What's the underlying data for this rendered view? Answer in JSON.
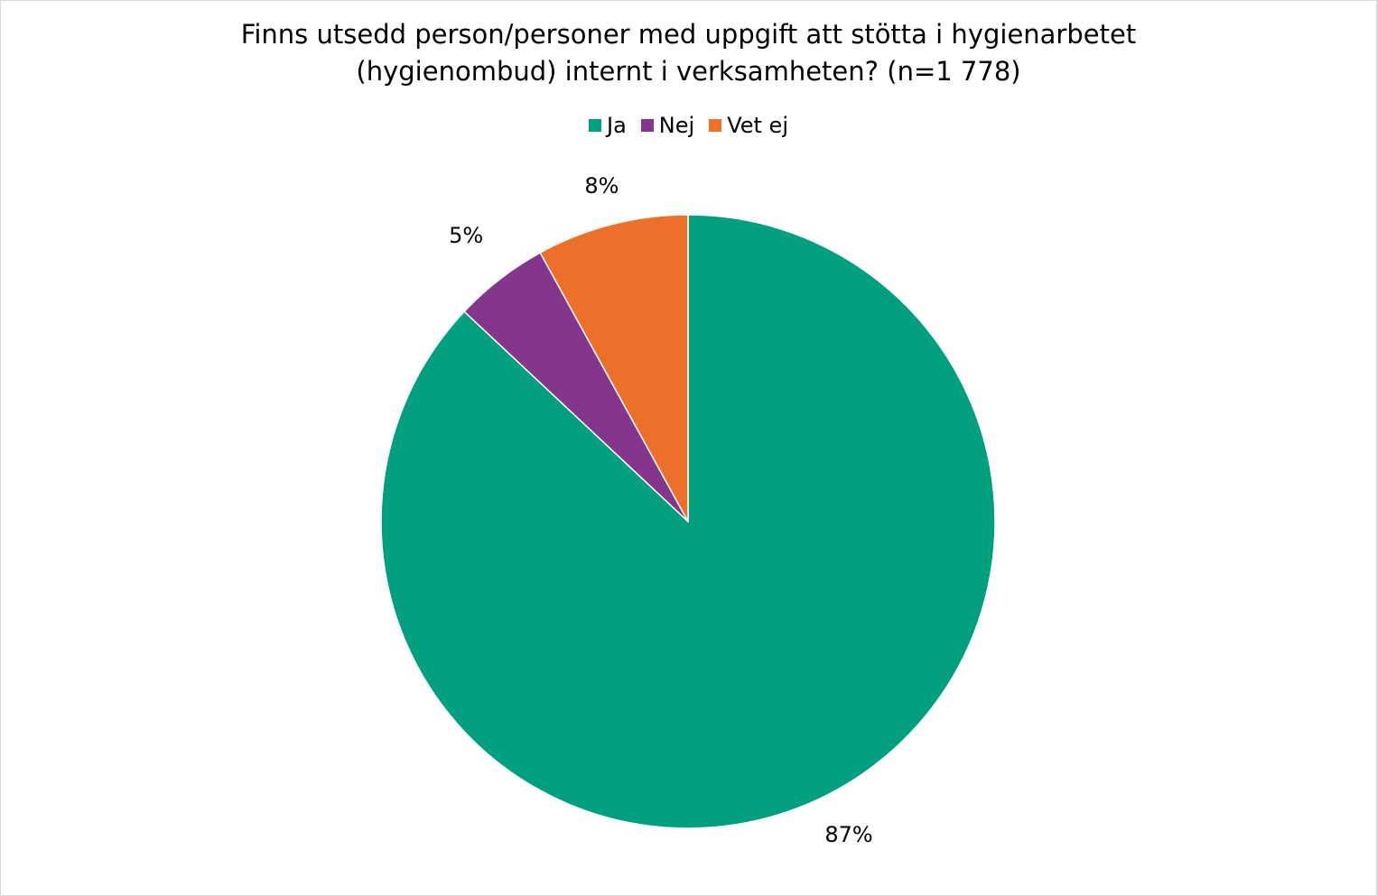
{
  "chart_data": {
    "type": "pie",
    "title_lines": [
      "Finns utsedd person/personer med uppgift att stötta i hygienarbetet",
      "(hygienombud) internt i verksamheten? (n=1 778)"
    ],
    "categories": [
      "Ja",
      "Nej",
      "Vet ej"
    ],
    "values": [
      87,
      5,
      8
    ],
    "labels": [
      "87%",
      "5%",
      "8%"
    ],
    "colors": [
      "#00A07E",
      "#84368C",
      "#EC7029"
    ],
    "legend": "top",
    "start_angle": "12 o'clock",
    "direction": "clockwise"
  }
}
